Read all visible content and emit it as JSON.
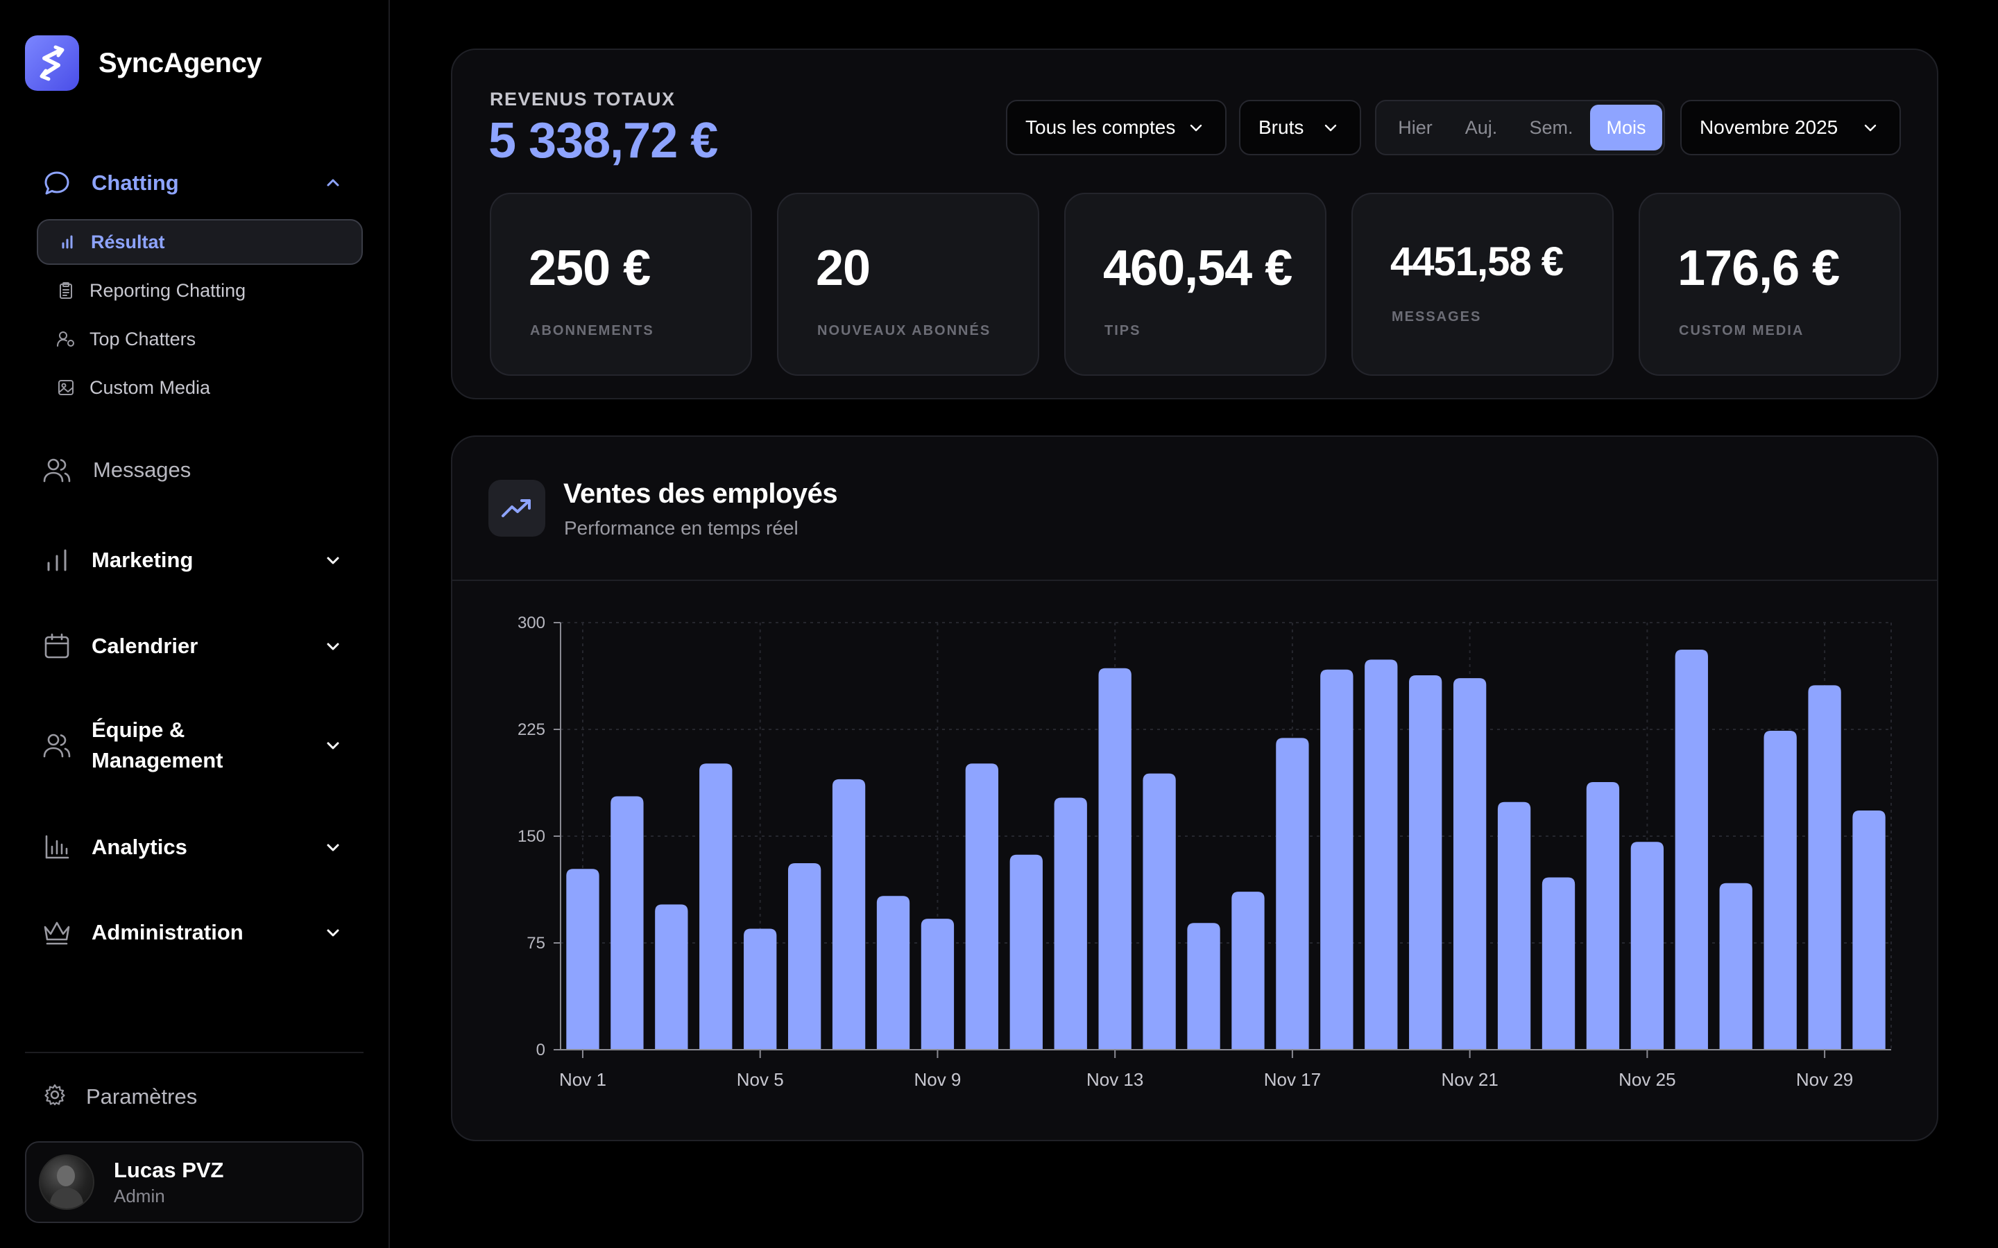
{
  "brand": {
    "name": "SyncAgency"
  },
  "sidebar": {
    "chatting": {
      "label": "Chatting",
      "items": [
        {
          "label": "Résultat",
          "icon": "bar-chart-icon"
        },
        {
          "label": "Reporting Chatting",
          "icon": "clipboard-icon"
        },
        {
          "label": "Top Chatters",
          "icon": "user-star-icon"
        },
        {
          "label": "Custom Media",
          "icon": "image-icon"
        }
      ]
    },
    "messages": {
      "label": "Messages"
    },
    "marketing": {
      "label": "Marketing"
    },
    "calendrier": {
      "label": "Calendrier"
    },
    "equipe": {
      "label_line1": "Équipe &",
      "label_line2": "Management"
    },
    "analytics": {
      "label": "Analytics"
    },
    "administration": {
      "label": "Administration"
    },
    "settings": {
      "label": "Paramètres"
    },
    "user": {
      "name": "Lucas PVZ",
      "role": "Admin"
    }
  },
  "revenue": {
    "label": "REVENUS TOTAUX",
    "value": "5 338,72 €",
    "filters": {
      "account": "Tous les comptes",
      "type": "Bruts",
      "periods": [
        "Hier",
        "Auj.",
        "Sem.",
        "Mois"
      ],
      "active_period": "Mois",
      "month": "Novembre 2025"
    },
    "stats": [
      {
        "value": "250 €",
        "label": "ABONNEMENTS"
      },
      {
        "value": "20",
        "label": "NOUVEAUX ABONNÉS"
      },
      {
        "value": "460,54 €",
        "label": "TIPS"
      },
      {
        "value": "4451,58 €",
        "label": "MESSAGES"
      },
      {
        "value": "176,6 €",
        "label": "CUSTOM MEDIA"
      }
    ]
  },
  "sales": {
    "title": "Ventes des employés",
    "subtitle": "Performance en temps réel",
    "icon": "trending-up-icon"
  },
  "colors": {
    "accent": "#8ea4ff",
    "background": "#000000",
    "card": "#0c0c0f"
  },
  "chart_data": {
    "type": "bar",
    "x_tick_labels": [
      "Nov 1",
      "Nov 5",
      "Nov 9",
      "Nov 13",
      "Nov 17",
      "Nov 21",
      "Nov 25",
      "Nov 29"
    ],
    "y_ticks": [
      0,
      75,
      150,
      225,
      300
    ],
    "ylim": [
      0,
      300
    ],
    "categories": [
      "Nov 1",
      "Nov 2",
      "Nov 3",
      "Nov 4",
      "Nov 5",
      "Nov 6",
      "Nov 7",
      "Nov 8",
      "Nov 9",
      "Nov 10",
      "Nov 11",
      "Nov 12",
      "Nov 13",
      "Nov 14",
      "Nov 15",
      "Nov 16",
      "Nov 17",
      "Nov 18",
      "Nov 19",
      "Nov 20",
      "Nov 21",
      "Nov 22",
      "Nov 23",
      "Nov 24",
      "Nov 25",
      "Nov 26",
      "Nov 27",
      "Nov 28",
      "Nov 29",
      "Nov 30"
    ],
    "values": [
      127,
      178,
      102,
      201,
      85,
      131,
      190,
      108,
      92,
      201,
      137,
      177,
      268,
      194,
      89,
      111,
      219,
      267,
      274,
      263,
      261,
      174,
      121,
      188,
      146,
      281,
      117,
      224,
      256,
      168
    ],
    "grid": true,
    "color": "#8ea4ff"
  }
}
